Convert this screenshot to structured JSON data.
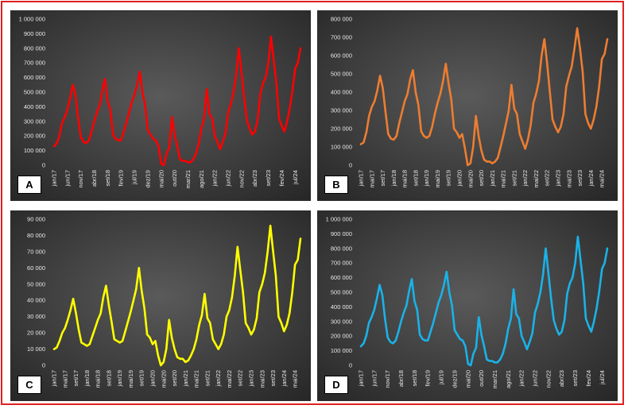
{
  "chart_data": [
    {
      "type": "line",
      "panel_label": "A",
      "line_color": "#ff0000",
      "ylim": [
        0,
        1000000
      ],
      "ytick_labels": [
        "0",
        "100 000",
        "200 000",
        "300 000",
        "400 000",
        "500 000",
        "600 000",
        "700 000",
        "800 000",
        "900 000",
        "1 000 000"
      ],
      "xtick_labels": [
        "jan/17",
        "jun/17",
        "nov/17",
        "abr/18",
        "set/18",
        "fev/19",
        "jul/19",
        "dez/19",
        "mai/20",
        "out/20",
        "mar/21",
        "ago/21",
        "jan/22",
        "jun/22",
        "nov/22",
        "abr/23",
        "set/23",
        "fev/24",
        "jul/24"
      ],
      "xtick_step": 5,
      "values": [
        130000,
        150000,
        200000,
        290000,
        330000,
        380000,
        460000,
        550000,
        480000,
        320000,
        190000,
        160000,
        150000,
        170000,
        230000,
        300000,
        360000,
        410000,
        510000,
        590000,
        440000,
        380000,
        210000,
        180000,
        170000,
        170000,
        230000,
        290000,
        360000,
        430000,
        480000,
        550000,
        640000,
        500000,
        410000,
        240000,
        210000,
        180000,
        170000,
        130000,
        10000,
        0,
        80000,
        120000,
        330000,
        210000,
        130000,
        40000,
        30000,
        30000,
        20000,
        20000,
        40000,
        80000,
        150000,
        250000,
        320000,
        520000,
        350000,
        320000,
        200000,
        160000,
        110000,
        160000,
        220000,
        360000,
        420000,
        500000,
        620000,
        800000,
        630000,
        460000,
        310000,
        250000,
        210000,
        230000,
        310000,
        490000,
        560000,
        600000,
        700000,
        880000,
        720000,
        560000,
        320000,
        270000,
        230000,
        300000,
        390000,
        510000,
        660000,
        700000,
        800000
      ]
    },
    {
      "type": "line",
      "panel_label": "B",
      "line_color": "#ed7d31",
      "ylim": [
        0,
        800000
      ],
      "ytick_labels": [
        "0",
        "100 000",
        "200 000",
        "300 000",
        "400 000",
        "500 000",
        "600 000",
        "700 000",
        "800 000"
      ],
      "xtick_labels": [
        "jan/17",
        "mai/17",
        "set/17",
        "jan/18",
        "mai/18",
        "set/18",
        "jan/19",
        "mai/19",
        "set/19",
        "jan/20",
        "mai/20",
        "set/20",
        "jan/21",
        "mai/21",
        "set/21",
        "jan/22",
        "mai/22",
        "set/22",
        "jan/23",
        "mai/23",
        "set/23",
        "jan/24",
        "mai/24"
      ],
      "xtick_step": 4,
      "values": [
        115000,
        125000,
        180000,
        270000,
        320000,
        350000,
        410000,
        490000,
        420000,
        290000,
        170000,
        145000,
        140000,
        160000,
        230000,
        290000,
        350000,
        390000,
        470000,
        520000,
        400000,
        330000,
        185000,
        160000,
        150000,
        160000,
        210000,
        280000,
        340000,
        390000,
        460000,
        555000,
        450000,
        360000,
        200000,
        180000,
        150000,
        170000,
        90000,
        0,
        10000,
        100000,
        270000,
        160000,
        80000,
        30000,
        20000,
        20000,
        10000,
        20000,
        40000,
        100000,
        160000,
        230000,
        300000,
        440000,
        310000,
        280000,
        170000,
        130000,
        90000,
        140000,
        220000,
        340000,
        390000,
        460000,
        600000,
        690000,
        560000,
        400000,
        250000,
        210000,
        180000,
        210000,
        280000,
        430000,
        490000,
        540000,
        640000,
        750000,
        640000,
        510000,
        280000,
        230000,
        200000,
        250000,
        320000,
        430000,
        580000,
        610000,
        690000
      ]
    },
    {
      "type": "line",
      "panel_label": "C",
      "line_color": "#ffff00",
      "ylim": [
        0,
        90000
      ],
      "ytick_labels": [
        "0",
        "10 000",
        "20 000",
        "30 000",
        "40 000",
        "50 000",
        "60 000",
        "70 000",
        "80 000",
        "90 000"
      ],
      "xtick_labels": [
        "jan/17",
        "mai/17",
        "set/17",
        "jan/18",
        "mai/18",
        "set/18",
        "jan/19",
        "mai/19",
        "set/19",
        "jan/20",
        "mai/20",
        "set/20",
        "jan/21",
        "mai/21",
        "set/21",
        "jan/22",
        "mai/22",
        "set/22",
        "jan/23",
        "mai/23",
        "set/23",
        "jan/24",
        "mai/24"
      ],
      "xtick_step": 4,
      "values": [
        10000,
        11000,
        15000,
        20000,
        23000,
        28000,
        34000,
        41000,
        32000,
        22000,
        14000,
        13000,
        12000,
        13000,
        18000,
        23000,
        28000,
        32000,
        42000,
        49000,
        37000,
        27000,
        16000,
        15000,
        14000,
        15000,
        21000,
        27000,
        33000,
        40000,
        47000,
        60000,
        46000,
        35000,
        19000,
        17000,
        13000,
        15000,
        6000,
        0,
        2000,
        10000,
        28000,
        17000,
        10000,
        5000,
        4000,
        4000,
        2000,
        3000,
        6000,
        10000,
        16000,
        25000,
        31000,
        44000,
        29000,
        26000,
        16000,
        13000,
        10000,
        13000,
        19000,
        30000,
        34000,
        42000,
        55000,
        73000,
        59000,
        45000,
        26000,
        23000,
        19000,
        22000,
        29000,
        45000,
        50000,
        57000,
        70000,
        86000,
        70000,
        55000,
        30000,
        26000,
        21000,
        25000,
        32000,
        45000,
        62000,
        65000,
        78000
      ]
    },
    {
      "type": "line",
      "panel_label": "D",
      "line_color": "#1ab2e8",
      "ylim": [
        0,
        1000000
      ],
      "ytick_labels": [
        "0",
        "100 000",
        "200 000",
        "300 000",
        "400 000",
        "500 000",
        "600 000",
        "700 000",
        "800 000",
        "900 000",
        "1 000 000"
      ],
      "xtick_labels": [
        "jan/17",
        "jun/17",
        "nov/17",
        "abr/18",
        "set/18",
        "fev/19",
        "jul/19",
        "dez/19",
        "mai/20",
        "out/20",
        "mar/21",
        "ago/21",
        "jan/22",
        "jun/22",
        "nov/22",
        "abr/23",
        "set/23",
        "fev/24",
        "jul/24"
      ],
      "xtick_step": 5,
      "values": [
        130000,
        150000,
        200000,
        290000,
        330000,
        380000,
        460000,
        550000,
        480000,
        320000,
        190000,
        160000,
        150000,
        170000,
        230000,
        300000,
        360000,
        410000,
        510000,
        590000,
        440000,
        380000,
        210000,
        180000,
        170000,
        170000,
        230000,
        290000,
        360000,
        430000,
        480000,
        550000,
        640000,
        500000,
        410000,
        240000,
        210000,
        180000,
        170000,
        130000,
        10000,
        0,
        80000,
        120000,
        330000,
        210000,
        130000,
        40000,
        30000,
        30000,
        20000,
        20000,
        40000,
        80000,
        150000,
        250000,
        320000,
        520000,
        350000,
        320000,
        200000,
        160000,
        110000,
        160000,
        220000,
        360000,
        420000,
        500000,
        620000,
        800000,
        630000,
        460000,
        310000,
        250000,
        210000,
        230000,
        310000,
        490000,
        560000,
        600000,
        700000,
        880000,
        720000,
        560000,
        320000,
        270000,
        230000,
        300000,
        390000,
        510000,
        660000,
        700000,
        800000
      ]
    }
  ]
}
